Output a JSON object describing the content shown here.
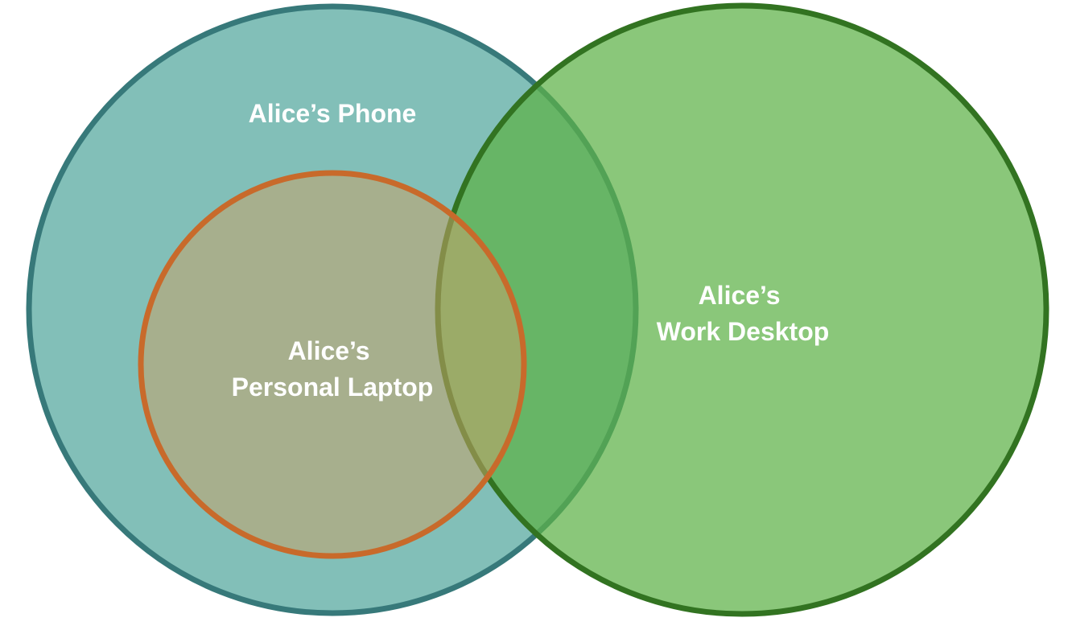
{
  "diagram": {
    "type": "venn",
    "sets": [
      {
        "id": "phone",
        "label_lines": [
          "Alice’s Phone"
        ],
        "fill": "#82BFB8",
        "stroke": "#37797A"
      },
      {
        "id": "work_desktop",
        "label_lines": [
          "Alice’s",
          "Work Desktop"
        ],
        "fill": "#5DB247",
        "fill_opacity": 0.72,
        "stroke": "#327321"
      },
      {
        "id": "personal_laptop",
        "label_lines": [
          "Alice’s",
          "Personal Laptop"
        ],
        "fill": "#C7A36A",
        "fill_opacity": 0.55,
        "stroke": "#C86A2B"
      }
    ],
    "relationships": [
      "personal_laptop is inside phone",
      "personal_laptop overlaps work_desktop",
      "phone overlaps work_desktop"
    ]
  }
}
